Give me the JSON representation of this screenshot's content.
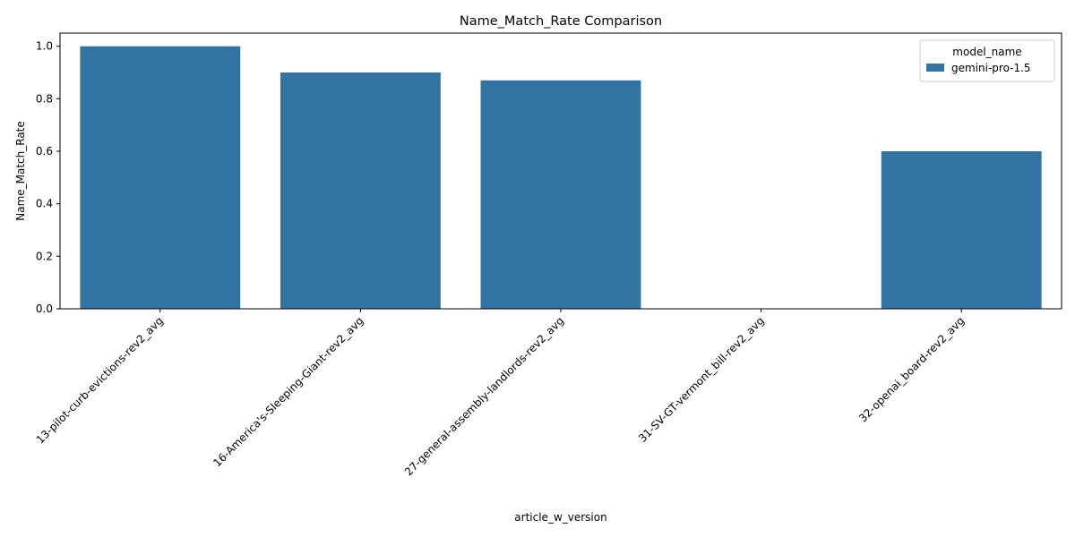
{
  "chart_data": {
    "type": "bar",
    "title": "Name_Match_Rate Comparison",
    "xlabel": "article_w_version",
    "ylabel": "Name_Match_Rate",
    "categories": [
      "13-pilot-curb-evictions-rev2_avg",
      "16-America's-Sleeping-Giant-rev2_avg",
      "27-general-assembly-landlords-rev2_avg",
      "31-SV-GT-vermont_bill-rev2_avg",
      "32-openai_board-rev2_avg"
    ],
    "series": [
      {
        "name": "gemini-pro-1.5",
        "values": [
          1.0,
          0.9,
          0.87,
          0.0,
          0.6
        ],
        "color": "#3274a1"
      }
    ],
    "ylim": [
      0,
      1.05
    ],
    "yticks": [
      "0.0",
      "0.2",
      "0.4",
      "0.6",
      "0.8",
      "1.0"
    ],
    "grid": false,
    "legend": {
      "title": "model_name",
      "placement": "top-right"
    }
  }
}
